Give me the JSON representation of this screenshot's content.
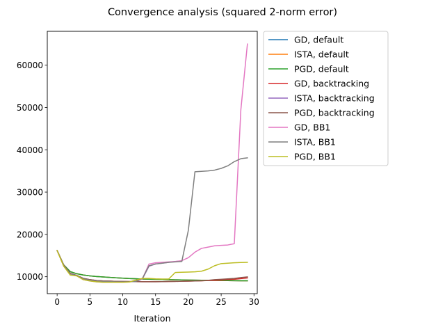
{
  "chart_data": {
    "type": "line",
    "title": "Convergence analysis (squared 2-norm error)",
    "xlabel": "Iteration",
    "ylabel": "",
    "xlim": [
      -1.5,
      30.5
    ],
    "ylim": [
      6000,
      68000
    ],
    "xticks": [
      0,
      5,
      10,
      15,
      20,
      25,
      30
    ],
    "yticks": [
      10000,
      20000,
      30000,
      40000,
      50000,
      60000
    ],
    "grid": false,
    "legend_position": "outside-right",
    "x": [
      0,
      1,
      2,
      3,
      4,
      5,
      6,
      7,
      8,
      9,
      10,
      11,
      12,
      13,
      14,
      15,
      16,
      17,
      18,
      19,
      20,
      21,
      22,
      23,
      24,
      25,
      26,
      27,
      28,
      29
    ],
    "series": [
      {
        "name": "GD, default",
        "color": "#1f77b4",
        "values": [
          16200,
          12800,
          11200,
          10700,
          10400,
          10200,
          10050,
          9950,
          9850,
          9750,
          9650,
          9580,
          9520,
          9460,
          9420,
          9380,
          9340,
          9300,
          9270,
          9240,
          9210,
          9190,
          9160,
          9140,
          9120,
          9100,
          9080,
          9060,
          9050,
          9040
        ]
      },
      {
        "name": "ISTA, default",
        "color": "#ff7f0e",
        "values": [
          16200,
          12800,
          11200,
          10700,
          10400,
          10200,
          10050,
          9950,
          9850,
          9750,
          9650,
          9580,
          9520,
          9460,
          9420,
          9380,
          9340,
          9300,
          9270,
          9240,
          9210,
          9190,
          9160,
          9140,
          9120,
          9100,
          9080,
          9060,
          9050,
          9040
        ]
      },
      {
        "name": "PGD, default",
        "color": "#2ca02c",
        "values": [
          16200,
          12800,
          11200,
          10700,
          10400,
          10200,
          10050,
          9950,
          9850,
          9750,
          9650,
          9580,
          9520,
          9460,
          9420,
          9380,
          9340,
          9300,
          9270,
          9240,
          9210,
          9190,
          9160,
          9140,
          9120,
          9100,
          9080,
          9060,
          9050,
          9040
        ]
      },
      {
        "name": "GD, backtracking",
        "color": "#d62728",
        "values": [
          16200,
          12700,
          10800,
          10300,
          9600,
          9300,
          9100,
          9000,
          8950,
          8900,
          8870,
          8850,
          8830,
          8820,
          8810,
          8820,
          8840,
          8870,
          8900,
          8930,
          8960,
          9000,
          9050,
          9100,
          9150,
          9200,
          9300,
          9400,
          9550,
          9700
        ]
      },
      {
        "name": "ISTA, backtracking",
        "color": "#9467bd",
        "values": [
          16200,
          12700,
          10800,
          10300,
          9600,
          9300,
          9100,
          9000,
          8950,
          8900,
          8870,
          8850,
          8830,
          9500,
          12500,
          13000,
          13200,
          13400,
          13600,
          13700,
          null,
          null,
          null,
          null,
          null,
          null,
          null,
          null,
          null,
          null
        ]
      },
      {
        "name": "PGD, backtracking",
        "color": "#8c564b",
        "values": [
          16200,
          12700,
          10800,
          10300,
          9600,
          9300,
          9100,
          9000,
          8950,
          8900,
          8870,
          8850,
          8830,
          8820,
          8810,
          8820,
          8840,
          8870,
          8900,
          8930,
          8960,
          9000,
          9050,
          9150,
          9300,
          9400,
          9500,
          9600,
          9800,
          9950
        ]
      },
      {
        "name": "GD, BB1",
        "color": "#e377c2",
        "values": [
          16200,
          12500,
          10500,
          10200,
          9300,
          9000,
          8800,
          8700,
          8700,
          8700,
          8700,
          8750,
          9200,
          9500,
          13000,
          13300,
          13400,
          13500,
          13600,
          13800,
          14500,
          15800,
          16700,
          17000,
          17300,
          17400,
          17500,
          17800,
          49500,
          65000
        ]
      },
      {
        "name": "ISTA, BB1",
        "color": "#7f7f7f",
        "values": [
          16200,
          12600,
          10700,
          10300,
          9500,
          9200,
          9000,
          8900,
          8850,
          8800,
          8800,
          8800,
          8900,
          9600,
          12600,
          13000,
          13200,
          13400,
          13500,
          13600,
          21000,
          34800,
          34900,
          35000,
          35200,
          35600,
          36200,
          37200,
          37900,
          38100
        ]
      },
      {
        "name": "PGD, BB1",
        "color": "#bcbd22",
        "values": [
          16200,
          12500,
          10400,
          10200,
          9300,
          9000,
          8800,
          8700,
          8700,
          8700,
          8700,
          8750,
          9200,
          9600,
          9600,
          9500,
          9450,
          9450,
          11000,
          11050,
          11100,
          11150,
          11300,
          11800,
          12600,
          13100,
          13200,
          13300,
          13350,
          13400
        ]
      }
    ]
  }
}
